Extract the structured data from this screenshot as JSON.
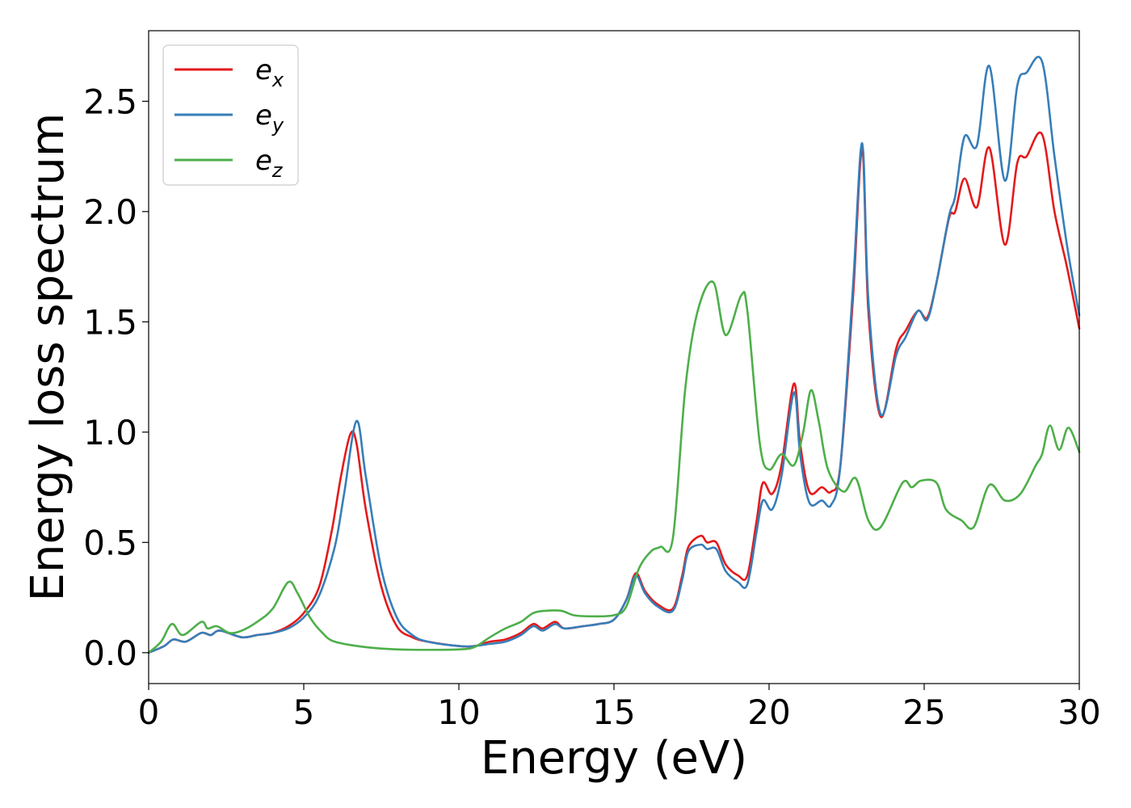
{
  "chart_data": {
    "type": "line",
    "xlabel": "Energy (eV)",
    "ylabel": "Energy loss spectrum",
    "xlim": [
      0,
      30
    ],
    "ylim": [
      -0.14,
      2.82
    ],
    "xticks": [
      0,
      5,
      10,
      15,
      20,
      25,
      30
    ],
    "xtick_labels": [
      "0",
      "5",
      "10",
      "15",
      "20",
      "25",
      "30"
    ],
    "yticks": [
      0.0,
      0.5,
      1.0,
      1.5,
      2.0,
      2.5
    ],
    "ytick_labels": [
      "0.0",
      "0.5",
      "1.0",
      "1.5",
      "2.0",
      "2.5"
    ],
    "grid": false,
    "legend_position": "top-left",
    "series": [
      {
        "name": "e_x",
        "label_base": "e",
        "label_sub": "x",
        "color": "#e41a1c",
        "points": [
          [
            0,
            0
          ],
          [
            0.5,
            0.03
          ],
          [
            0.8,
            0.06
          ],
          [
            1.2,
            0.05
          ],
          [
            1.7,
            0.09
          ],
          [
            2.0,
            0.08
          ],
          [
            2.3,
            0.1
          ],
          [
            3.0,
            0.07
          ],
          [
            3.5,
            0.08
          ],
          [
            4.0,
            0.09
          ],
          [
            4.5,
            0.12
          ],
          [
            5.0,
            0.18
          ],
          [
            5.5,
            0.3
          ],
          [
            5.9,
            0.55
          ],
          [
            6.2,
            0.8
          ],
          [
            6.5,
            0.99
          ],
          [
            6.7,
            0.95
          ],
          [
            7.0,
            0.65
          ],
          [
            7.5,
            0.3
          ],
          [
            8.0,
            0.12
          ],
          [
            8.5,
            0.07
          ],
          [
            9.0,
            0.05
          ],
          [
            10.0,
            0.03
          ],
          [
            10.5,
            0.03
          ],
          [
            11.0,
            0.05
          ],
          [
            11.5,
            0.06
          ],
          [
            12.0,
            0.09
          ],
          [
            12.4,
            0.13
          ],
          [
            12.7,
            0.11
          ],
          [
            13.1,
            0.14
          ],
          [
            13.4,
            0.11
          ],
          [
            14.0,
            0.12
          ],
          [
            14.5,
            0.13
          ],
          [
            15.0,
            0.15
          ],
          [
            15.4,
            0.24
          ],
          [
            15.7,
            0.36
          ],
          [
            16.0,
            0.28
          ],
          [
            16.4,
            0.22
          ],
          [
            16.9,
            0.2
          ],
          [
            17.2,
            0.35
          ],
          [
            17.4,
            0.48
          ],
          [
            17.8,
            0.53
          ],
          [
            18.0,
            0.5
          ],
          [
            18.3,
            0.5
          ],
          [
            18.6,
            0.4
          ],
          [
            19.0,
            0.35
          ],
          [
            19.3,
            0.35
          ],
          [
            19.6,
            0.6
          ],
          [
            19.8,
            0.77
          ],
          [
            20.1,
            0.72
          ],
          [
            20.4,
            0.85
          ],
          [
            20.8,
            1.22
          ],
          [
            21.0,
            0.95
          ],
          [
            21.3,
            0.73
          ],
          [
            21.7,
            0.75
          ],
          [
            22.0,
            0.73
          ],
          [
            22.3,
            0.85
          ],
          [
            22.7,
            1.6
          ],
          [
            23.0,
            2.28
          ],
          [
            23.2,
            1.55
          ],
          [
            23.6,
            1.07
          ],
          [
            24.1,
            1.38
          ],
          [
            24.4,
            1.46
          ],
          [
            24.8,
            1.55
          ],
          [
            25.1,
            1.52
          ],
          [
            25.4,
            1.68
          ],
          [
            25.8,
            1.97
          ],
          [
            26.0,
            2.0
          ],
          [
            26.3,
            2.15
          ],
          [
            26.7,
            2.02
          ],
          [
            27.1,
            2.29
          ],
          [
            27.6,
            1.85
          ],
          [
            28.0,
            2.22
          ],
          [
            28.3,
            2.25
          ],
          [
            28.8,
            2.35
          ],
          [
            29.2,
            2.0
          ],
          [
            29.6,
            1.75
          ],
          [
            30.0,
            1.47
          ]
        ]
      },
      {
        "name": "e_y",
        "label_base": "e",
        "label_sub": "y",
        "color": "#377eb8",
        "points": [
          [
            0,
            0
          ],
          [
            0.5,
            0.03
          ],
          [
            0.8,
            0.06
          ],
          [
            1.2,
            0.05
          ],
          [
            1.7,
            0.09
          ],
          [
            2.0,
            0.08
          ],
          [
            2.3,
            0.1
          ],
          [
            3.0,
            0.07
          ],
          [
            3.5,
            0.08
          ],
          [
            4.0,
            0.09
          ],
          [
            4.5,
            0.11
          ],
          [
            5.0,
            0.16
          ],
          [
            5.5,
            0.26
          ],
          [
            6.0,
            0.48
          ],
          [
            6.3,
            0.72
          ],
          [
            6.7,
            1.05
          ],
          [
            7.0,
            0.8
          ],
          [
            7.5,
            0.38
          ],
          [
            8.0,
            0.16
          ],
          [
            8.5,
            0.08
          ],
          [
            9.0,
            0.05
          ],
          [
            10.0,
            0.03
          ],
          [
            10.5,
            0.03
          ],
          [
            11.0,
            0.04
          ],
          [
            11.5,
            0.05
          ],
          [
            12.0,
            0.08
          ],
          [
            12.4,
            0.12
          ],
          [
            12.7,
            0.1
          ],
          [
            13.1,
            0.13
          ],
          [
            13.4,
            0.11
          ],
          [
            14.0,
            0.12
          ],
          [
            14.5,
            0.13
          ],
          [
            15.0,
            0.15
          ],
          [
            15.4,
            0.24
          ],
          [
            15.7,
            0.35
          ],
          [
            16.0,
            0.27
          ],
          [
            16.4,
            0.21
          ],
          [
            16.9,
            0.19
          ],
          [
            17.2,
            0.33
          ],
          [
            17.4,
            0.46
          ],
          [
            17.8,
            0.49
          ],
          [
            18.0,
            0.47
          ],
          [
            18.3,
            0.47
          ],
          [
            18.6,
            0.37
          ],
          [
            19.0,
            0.32
          ],
          [
            19.3,
            0.31
          ],
          [
            19.6,
            0.55
          ],
          [
            19.8,
            0.69
          ],
          [
            20.1,
            0.65
          ],
          [
            20.4,
            0.8
          ],
          [
            20.8,
            1.18
          ],
          [
            21.0,
            0.9
          ],
          [
            21.3,
            0.68
          ],
          [
            21.7,
            0.69
          ],
          [
            22.0,
            0.67
          ],
          [
            22.3,
            0.85
          ],
          [
            22.7,
            1.65
          ],
          [
            23.0,
            2.31
          ],
          [
            23.2,
            1.6
          ],
          [
            23.6,
            1.08
          ],
          [
            24.1,
            1.35
          ],
          [
            24.4,
            1.43
          ],
          [
            24.8,
            1.55
          ],
          [
            25.1,
            1.51
          ],
          [
            25.4,
            1.68
          ],
          [
            25.8,
            1.98
          ],
          [
            26.0,
            2.07
          ],
          [
            26.3,
            2.34
          ],
          [
            26.7,
            2.3
          ],
          [
            27.1,
            2.66
          ],
          [
            27.6,
            2.14
          ],
          [
            28.0,
            2.57
          ],
          [
            28.3,
            2.63
          ],
          [
            28.8,
            2.68
          ],
          [
            29.2,
            2.25
          ],
          [
            29.6,
            1.85
          ],
          [
            30.0,
            1.53
          ]
        ]
      },
      {
        "name": "e_z",
        "label_base": "e",
        "label_sub": "z",
        "color": "#4daf4a",
        "points": [
          [
            0,
            0
          ],
          [
            0.4,
            0.05
          ],
          [
            0.75,
            0.13
          ],
          [
            1.1,
            0.08
          ],
          [
            1.7,
            0.14
          ],
          [
            1.9,
            0.11
          ],
          [
            2.2,
            0.12
          ],
          [
            2.6,
            0.09
          ],
          [
            3.0,
            0.1
          ],
          [
            3.5,
            0.14
          ],
          [
            4.0,
            0.2
          ],
          [
            4.5,
            0.32
          ],
          [
            4.8,
            0.27
          ],
          [
            5.2,
            0.16
          ],
          [
            5.6,
            0.09
          ],
          [
            6.0,
            0.05
          ],
          [
            7.0,
            0.025
          ],
          [
            8.0,
            0.015
          ],
          [
            9.0,
            0.013
          ],
          [
            10.0,
            0.015
          ],
          [
            10.5,
            0.025
          ],
          [
            11.0,
            0.07
          ],
          [
            11.5,
            0.11
          ],
          [
            12.0,
            0.14
          ],
          [
            12.4,
            0.18
          ],
          [
            12.8,
            0.19
          ],
          [
            13.3,
            0.19
          ],
          [
            13.7,
            0.17
          ],
          [
            14.2,
            0.165
          ],
          [
            15.0,
            0.17
          ],
          [
            15.4,
            0.21
          ],
          [
            15.8,
            0.38
          ],
          [
            16.2,
            0.46
          ],
          [
            16.5,
            0.48
          ],
          [
            16.9,
            0.52
          ],
          [
            17.3,
            1.2
          ],
          [
            17.7,
            1.55
          ],
          [
            18.2,
            1.68
          ],
          [
            18.6,
            1.44
          ],
          [
            19.1,
            1.62
          ],
          [
            19.3,
            1.55
          ],
          [
            19.7,
            0.95
          ],
          [
            20.0,
            0.83
          ],
          [
            20.4,
            0.9
          ],
          [
            20.8,
            0.85
          ],
          [
            21.1,
            1.0
          ],
          [
            21.35,
            1.19
          ],
          [
            21.6,
            1.05
          ],
          [
            21.9,
            0.83
          ],
          [
            22.4,
            0.73
          ],
          [
            22.8,
            0.79
          ],
          [
            23.2,
            0.6
          ],
          [
            23.6,
            0.57
          ],
          [
            24.3,
            0.77
          ],
          [
            24.6,
            0.75
          ],
          [
            24.9,
            0.78
          ],
          [
            25.4,
            0.77
          ],
          [
            25.7,
            0.65
          ],
          [
            26.2,
            0.6
          ],
          [
            26.6,
            0.57
          ],
          [
            27.1,
            0.76
          ],
          [
            27.6,
            0.69
          ],
          [
            28.1,
            0.72
          ],
          [
            28.6,
            0.85
          ],
          [
            28.8,
            0.9
          ],
          [
            29.05,
            1.03
          ],
          [
            29.35,
            0.92
          ],
          [
            29.65,
            1.02
          ],
          [
            30.0,
            0.91
          ]
        ]
      }
    ]
  }
}
